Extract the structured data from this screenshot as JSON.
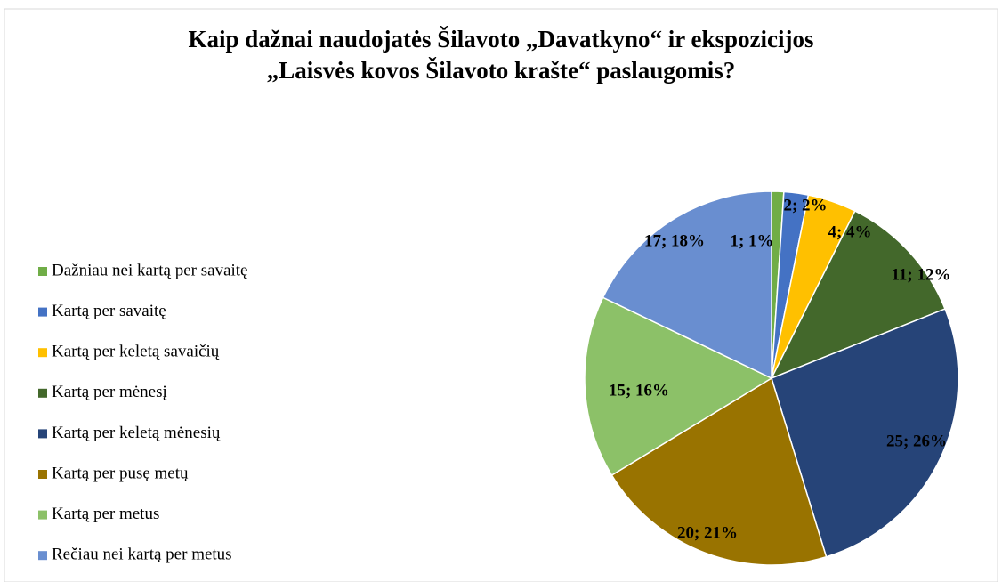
{
  "chart_data": {
    "type": "pie",
    "title": "Kaip dažnai naudojatės Šilavoto „Davatkyno“ ir ekspozicijos „Laisvės kovos Šilavoto krašte“ paslaugomis?",
    "categories": [
      "Dažniau nei kartą per savaitę",
      "Kartą per savaitę",
      "Kartą per keletą savaičių",
      "Kartą per mėnesį",
      "Kartą per keletą mėnesių",
      "Kartą per pusę metų",
      "Kartą per metus",
      "Rečiau nei kartą per metus"
    ],
    "values": [
      1,
      2,
      4,
      11,
      25,
      20,
      15,
      17
    ],
    "value_labels": [
      "1; 1%",
      "2; 2%",
      "4; 4%",
      "11; 12%",
      "25; 26%",
      "20; 21%",
      "15; 16%",
      "17; 18%"
    ],
    "colors": [
      "#70ad47",
      "#4472c4",
      "#ffc000",
      "#43682b",
      "#264478",
      "#997300",
      "#8cc168",
      "#698ed0"
    ],
    "legend": "left"
  }
}
